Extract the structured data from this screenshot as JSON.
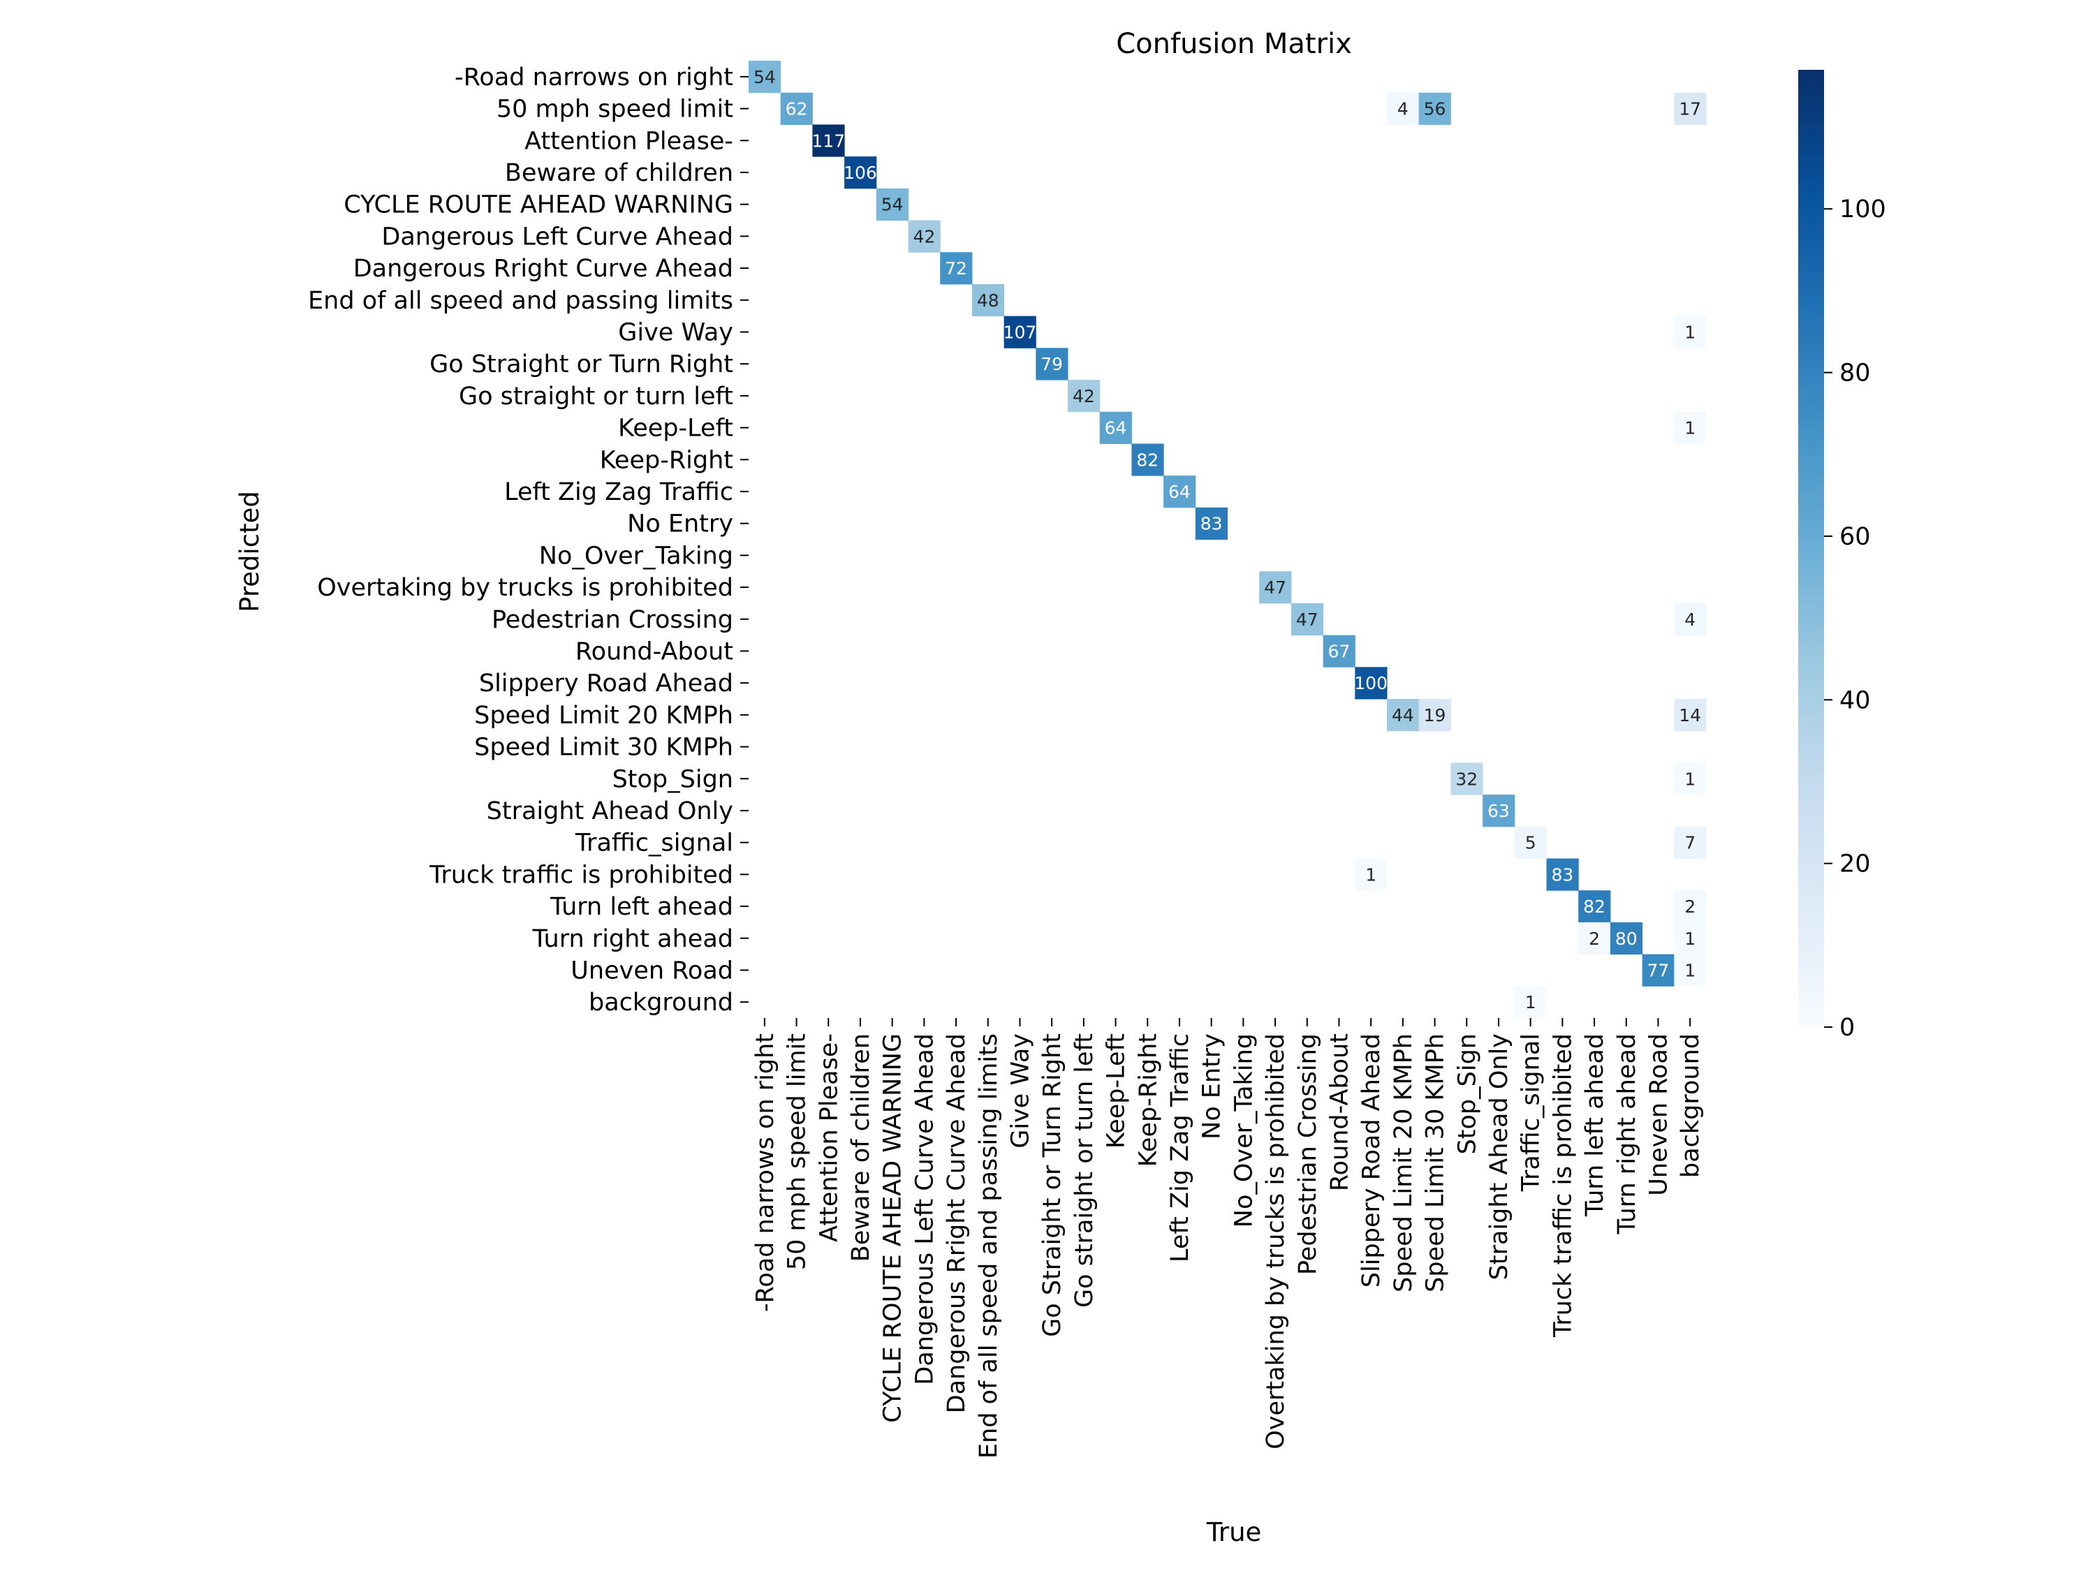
{
  "chart_data": {
    "type": "heatmap",
    "title": "Confusion Matrix",
    "xlabel": "True",
    "ylabel": "Predicted",
    "colormap": "Blues",
    "vmin": 0,
    "vmax": 117,
    "colorbar_ticks": [
      0,
      20,
      40,
      60,
      80,
      100
    ],
    "labels": [
      "-Road narrows on right",
      "50 mph speed limit",
      "Attention Please-",
      "Beware of children",
      "CYCLE ROUTE AHEAD WARNING",
      "Dangerous Left Curve Ahead",
      "Dangerous Rright Curve Ahead",
      "End of all speed and passing limits",
      "Give Way",
      "Go Straight or Turn Right",
      "Go straight or turn left",
      "Keep-Left",
      "Keep-Right",
      "Left Zig Zag Traffic",
      "No Entry",
      "No_Over_Taking",
      "Overtaking by trucks is prohibited",
      "Pedestrian Crossing",
      "Round-About",
      "Slippery Road Ahead",
      "Speed Limit 20 KMPh",
      "Speed Limit 30 KMPh",
      "Stop_Sign",
      "Straight Ahead Only",
      "Traffic_signal",
      "Truck traffic is prohibited",
      "Turn left ahead",
      "Turn right ahead",
      "Uneven Road",
      "background"
    ],
    "cells": [
      [
        0,
        0,
        54
      ],
      [
        1,
        1,
        62
      ],
      [
        1,
        20,
        4
      ],
      [
        1,
        21,
        56
      ],
      [
        1,
        29,
        17
      ],
      [
        2,
        2,
        117
      ],
      [
        3,
        3,
        106
      ],
      [
        4,
        4,
        54
      ],
      [
        5,
        5,
        42
      ],
      [
        6,
        6,
        72
      ],
      [
        7,
        7,
        48
      ],
      [
        8,
        8,
        107
      ],
      [
        8,
        29,
        1
      ],
      [
        9,
        9,
        79
      ],
      [
        10,
        10,
        42
      ],
      [
        11,
        11,
        64
      ],
      [
        11,
        29,
        1
      ],
      [
        12,
        12,
        82
      ],
      [
        13,
        13,
        64
      ],
      [
        14,
        14,
        83
      ],
      [
        16,
        16,
        47
      ],
      [
        17,
        17,
        47
      ],
      [
        17,
        29,
        4
      ],
      [
        18,
        18,
        67
      ],
      [
        19,
        19,
        100
      ],
      [
        20,
        20,
        44
      ],
      [
        20,
        21,
        19
      ],
      [
        20,
        29,
        14
      ],
      [
        22,
        22,
        32
      ],
      [
        22,
        29,
        1
      ],
      [
        23,
        23,
        63
      ],
      [
        24,
        24,
        5
      ],
      [
        24,
        29,
        7
      ],
      [
        25,
        19,
        1
      ],
      [
        25,
        25,
        83
      ],
      [
        26,
        26,
        82
      ],
      [
        26,
        29,
        2
      ],
      [
        27,
        26,
        2
      ],
      [
        27,
        27,
        80
      ],
      [
        27,
        29,
        1
      ],
      [
        28,
        28,
        77
      ],
      [
        28,
        29,
        1
      ],
      [
        29,
        24,
        1
      ]
    ],
    "cells_format": "[predicted_row_index, true_col_index, count]; empty cells are 0"
  }
}
